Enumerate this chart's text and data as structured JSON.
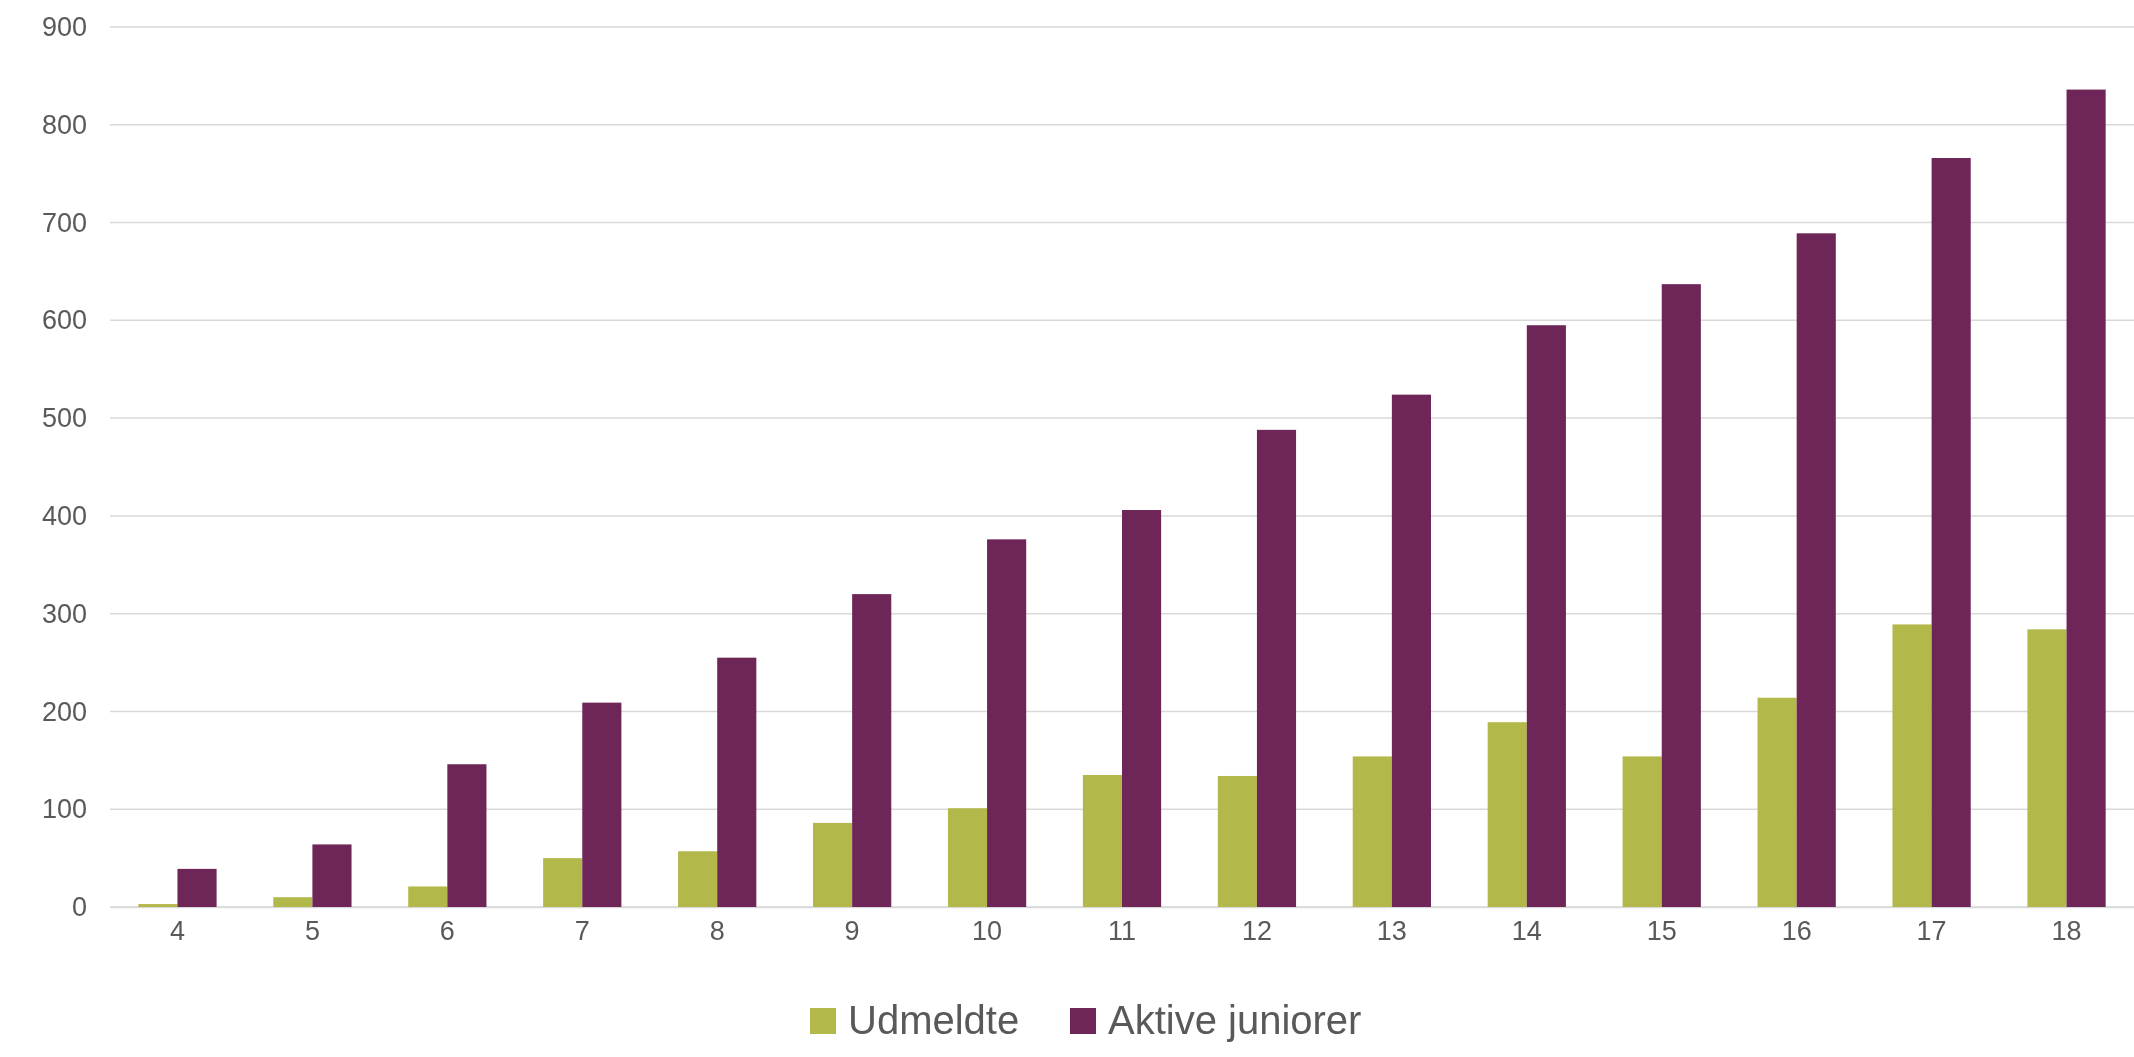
{
  "chart_data": {
    "type": "bar",
    "categories": [
      "4",
      "5",
      "6",
      "7",
      "8",
      "9",
      "10",
      "11",
      "12",
      "13",
      "14",
      "15",
      "16",
      "17",
      "18"
    ],
    "series": [
      {
        "name": "Udmeldte",
        "color": "#b3b84a",
        "values": [
          3,
          10,
          21,
          50,
          57,
          86,
          101,
          135,
          134,
          154,
          189,
          154,
          214,
          289,
          284
        ]
      },
      {
        "name": "Aktive juniorer",
        "color": "#6e2659",
        "values": [
          39,
          64,
          146,
          209,
          255,
          320,
          376,
          406,
          488,
          524,
          595,
          637,
          689,
          766,
          836
        ]
      }
    ],
    "ylim": [
      0,
      900
    ],
    "yticks": [
      0,
      100,
      200,
      300,
      400,
      500,
      600,
      700,
      800,
      900
    ],
    "grid": "y",
    "legend": "bottom"
  }
}
